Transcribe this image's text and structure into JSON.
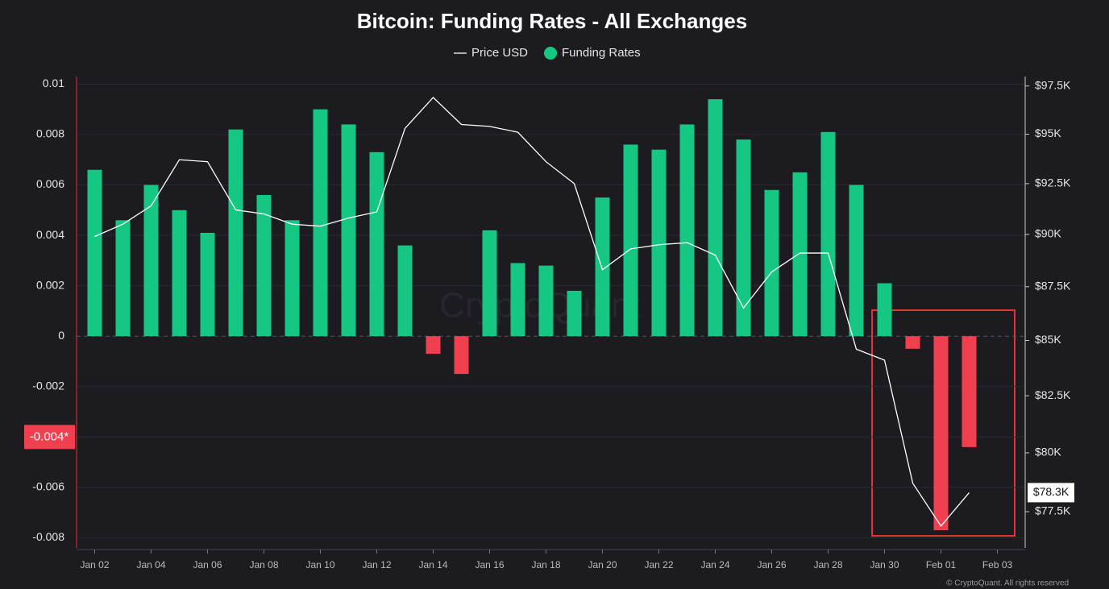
{
  "chart_data": {
    "type": "bar",
    "title": "Bitcoin: Funding Rates - All Exchanges",
    "watermark": "CryptoQuant",
    "footer": "© CryptoQuant. All rights reserved",
    "categories": [
      "Jan 02",
      null,
      "Jan 04",
      null,
      "Jan 06",
      null,
      "Jan 08",
      null,
      "Jan 10",
      null,
      "Jan 12",
      null,
      "Jan 14",
      null,
      "Jan 16",
      null,
      "Jan 18",
      null,
      "Jan 20",
      null,
      "Jan 22",
      null,
      "Jan 24",
      null,
      "Jan 26",
      null,
      "Jan 28",
      null,
      "Jan 30",
      null,
      "Feb 01",
      null,
      "Feb 03"
    ],
    "series": [
      {
        "name": "Price USD",
        "type": "line",
        "axis": "y2",
        "color": "#ffffff",
        "values": [
          89900,
          90500,
          91400,
          93700,
          93600,
          91200,
          91000,
          90500,
          90400,
          90800,
          91100,
          95300,
          96900,
          95500,
          95400,
          95100,
          93600,
          92500,
          88300,
          89300,
          89500,
          89600,
          89000,
          86500,
          88200,
          89100,
          89100,
          84600,
          84100,
          78700,
          76900,
          78300,
          null
        ],
        "value_labels": [
          null,
          null,
          null,
          null,
          null,
          null,
          null,
          null,
          null,
          null,
          null,
          null,
          null,
          null,
          null,
          null,
          null,
          null,
          null,
          null,
          null,
          null,
          null,
          null,
          null,
          null,
          null,
          null,
          null,
          null,
          null,
          "$78.3K",
          null
        ]
      },
      {
        "name": "Funding Rates",
        "type": "bar",
        "color": "#16c784",
        "negative_color": "#f0404f",
        "values": [
          0.0066,
          0.0046,
          0.006,
          0.005,
          0.0041,
          0.0082,
          0.0056,
          0.0046,
          0.009,
          0.0084,
          0.0073,
          0.0036,
          -0.0007,
          -0.0015,
          0.0042,
          0.0029,
          0.0028,
          0.0018,
          0.0055,
          0.0076,
          0.0074,
          0.0084,
          0.0094,
          0.0078,
          0.0058,
          0.0065,
          0.0081,
          0.006,
          0.0021,
          -0.0005,
          -0.0077,
          -0.0044,
          null
        ]
      }
    ],
    "ylim": [
      -0.0084,
      0.0103
    ],
    "yticks": [
      0.01,
      0.008,
      0.006,
      0.004,
      0.002,
      0,
      -0.002,
      -0.004,
      -0.006,
      -0.008
    ],
    "y2lim": [
      76000,
      98000
    ],
    "y2log": true,
    "y2ticks": [
      {
        "value": 97500,
        "label": "$97.5K"
      },
      {
        "value": 95000,
        "label": "$95K"
      },
      {
        "value": 92500,
        "label": "$92.5K"
      },
      {
        "value": 90000,
        "label": "$90K"
      },
      {
        "value": 87500,
        "label": "$87.5K"
      },
      {
        "value": 85000,
        "label": "$85K"
      },
      {
        "value": 82500,
        "label": "$82.5K"
      },
      {
        "value": 80000,
        "label": "$80K"
      },
      {
        "value": 77500,
        "label": "$77.5K"
      }
    ],
    "y_cursor": {
      "value": -0.004,
      "label": "-0.004*"
    },
    "grid": true
  }
}
